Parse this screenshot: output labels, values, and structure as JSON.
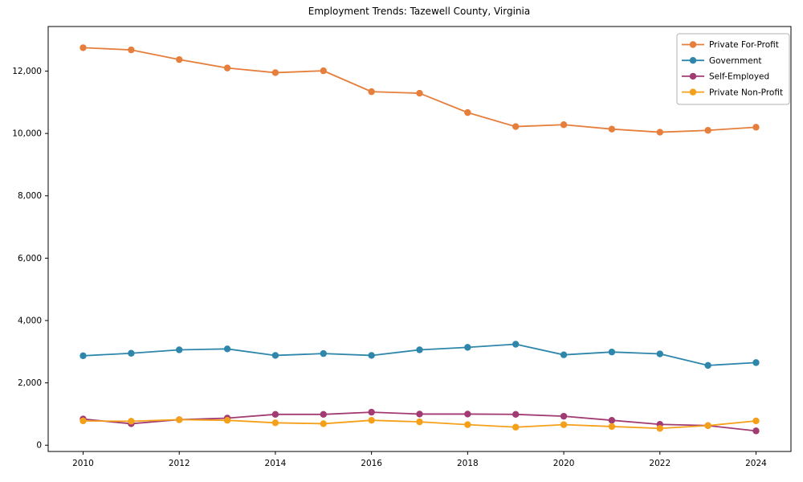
{
  "chart_data": {
    "type": "line",
    "title": "Employment Trends: Tazewell County, Virginia",
    "x": [
      2010,
      2011,
      2012,
      2013,
      2014,
      2015,
      2016,
      2017,
      2018,
      2019,
      2020,
      2021,
      2022,
      2023,
      2024
    ],
    "series": [
      {
        "name": "Private For-Profit",
        "color": "#E67E3C",
        "values": [
          12750,
          12680,
          12370,
          12100,
          11950,
          12010,
          11340,
          11290,
          10670,
          10220,
          10280,
          10140,
          10040,
          10100,
          10200
        ]
      },
      {
        "name": "Government",
        "color": "#2E86AB",
        "values": [
          2870,
          2950,
          3060,
          3090,
          2880,
          2940,
          2880,
          3060,
          3140,
          3240,
          2900,
          2990,
          2930,
          2560,
          2650
        ]
      },
      {
        "name": "Self-Employed",
        "color": "#A23B72",
        "values": [
          840,
          690,
          820,
          870,
          990,
          990,
          1060,
          1000,
          1000,
          990,
          930,
          800,
          670,
          630,
          460
        ]
      },
      {
        "name": "Private Non-Profit",
        "color": "#F5A01B",
        "values": [
          780,
          770,
          820,
          800,
          720,
          690,
          800,
          750,
          660,
          580,
          660,
          600,
          540,
          630,
          780
        ]
      }
    ],
    "xticks": [
      2010,
      2012,
      2014,
      2016,
      2018,
      2020,
      2022,
      2024
    ],
    "yticks": [
      0,
      2000,
      4000,
      6000,
      8000,
      10000,
      12000
    ],
    "ytick_labels": [
      "0",
      "2,000",
      "4,000",
      "6,000",
      "8,000",
      "10,000",
      "12,000"
    ],
    "ylim": [
      -200,
      13430
    ],
    "grid": false,
    "marker": "o",
    "legend_position": "upper right",
    "axis_color": "#000000",
    "legend_border_color": "#b3b3b3",
    "background_color": "#ffffff"
  }
}
